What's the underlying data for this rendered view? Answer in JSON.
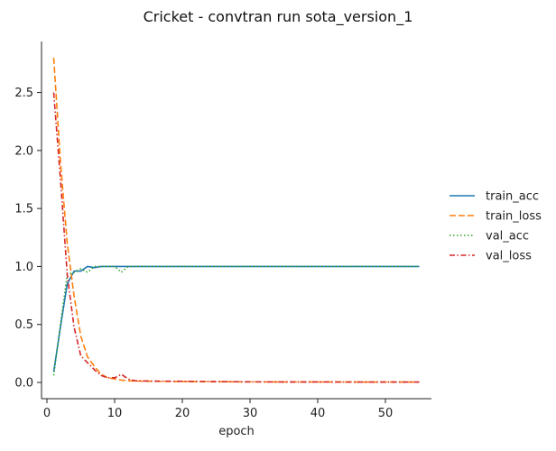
{
  "chart_data": {
    "type": "line",
    "title": "Cricket - convtran run sota_version_1",
    "xlabel": "epoch",
    "ylabel": "",
    "xlim": [
      -0.8,
      56.8
    ],
    "ylim": [
      -0.14,
      2.94
    ],
    "xticks": [
      0,
      10,
      20,
      30,
      40,
      50
    ],
    "yticks": [
      0.0,
      0.5,
      1.0,
      1.5,
      2.0,
      2.5
    ],
    "ytick_labels": [
      "0.0",
      "0.5",
      "1.0",
      "1.5",
      "2.0",
      "2.5"
    ],
    "grid": false,
    "legend_position": "right",
    "series": [
      {
        "name": "train_acc",
        "color": "#1f77b4",
        "dash": "solid",
        "x": [
          1,
          2,
          3,
          4,
          5,
          6,
          7,
          8,
          9,
          10,
          55
        ],
        "y": [
          0.09,
          0.48,
          0.85,
          0.96,
          0.96,
          1.0,
          0.99,
          1.0,
          1.0,
          1.0,
          1.0
        ]
      },
      {
        "name": "train_loss",
        "color": "#ff7f0e",
        "dash": "dashed",
        "x": [
          1,
          2,
          3,
          4,
          5,
          6,
          7,
          8,
          9,
          10,
          11,
          12,
          13,
          15,
          20,
          30,
          40,
          55
        ],
        "y": [
          2.8,
          1.9,
          1.2,
          0.75,
          0.4,
          0.22,
          0.14,
          0.07,
          0.04,
          0.03,
          0.02,
          0.015,
          0.012,
          0.01,
          0.008,
          0.005,
          0.004,
          0.003
        ]
      },
      {
        "name": "val_acc",
        "color": "#2ca02c",
        "dash": "dotted",
        "x": [
          1,
          2,
          3,
          4,
          5,
          6,
          7,
          8,
          9,
          10,
          11,
          12,
          13,
          55
        ],
        "y": [
          0.06,
          0.5,
          0.93,
          0.95,
          0.98,
          0.95,
          1.0,
          1.0,
          1.0,
          1.0,
          0.95,
          1.0,
          1.0,
          1.0
        ]
      },
      {
        "name": "val_loss",
        "color": "#d62728",
        "dash": "dashdot",
        "x": [
          1,
          2,
          3,
          4,
          5,
          6,
          7,
          8,
          9,
          10,
          11,
          12,
          13,
          15,
          20,
          30,
          55
        ],
        "y": [
          2.5,
          1.75,
          0.93,
          0.48,
          0.23,
          0.17,
          0.11,
          0.06,
          0.04,
          0.04,
          0.07,
          0.03,
          0.015,
          0.012,
          0.01,
          0.005,
          0.003
        ]
      }
    ]
  }
}
